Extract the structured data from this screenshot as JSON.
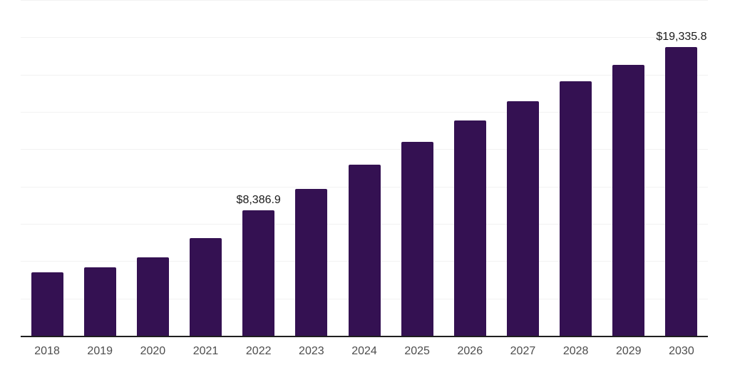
{
  "chart_data": {
    "type": "bar",
    "title": "",
    "xlabel": "",
    "ylabel": "",
    "categories": [
      "2018",
      "2019",
      "2020",
      "2021",
      "2022",
      "2023",
      "2024",
      "2025",
      "2026",
      "2027",
      "2028",
      "2029",
      "2030"
    ],
    "values": [
      4240,
      4600,
      5270,
      6540,
      8386.9,
      9840,
      11480,
      12980,
      14410,
      15730,
      17040,
      18140,
      19335.8
    ],
    "ylim": [
      0,
      22500
    ],
    "grid_step": 2500,
    "grid": "horizontal",
    "legend": "none",
    "y_axis_labels": "none",
    "data_labels": [
      {
        "category": "2022",
        "text": "$8,386.9",
        "value": 8386.9
      },
      {
        "category": "2030",
        "text": "$19,335.8",
        "value": 19335.8
      }
    ],
    "colors": {
      "bar": "#341152",
      "grid_line": "#f2f2f2",
      "axis_line": "#1f1f1f",
      "tick_label": "#4d4d4d",
      "data_label": "#1a1a1a",
      "background": "#ffffff"
    }
  }
}
